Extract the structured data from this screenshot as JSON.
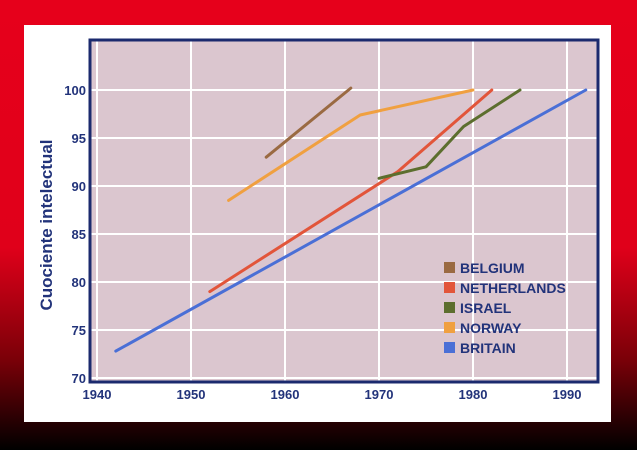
{
  "chart_data": {
    "type": "line",
    "title": "",
    "xlabel": "",
    "ylabel": "Cuociente intelectual",
    "xlim": [
      1940,
      1995
    ],
    "ylim": [
      70,
      105
    ],
    "xticks": [
      1940,
      1950,
      1960,
      1970,
      1980,
      1990
    ],
    "yticks": [
      70,
      75,
      80,
      85,
      90,
      95,
      100
    ],
    "grid": true,
    "legend": "bottom-right",
    "background_color": "#dbc6cf",
    "series": [
      {
        "name": "BELGIUM",
        "color": "#9a6a42",
        "x": [
          1958,
          1967
        ],
        "y": [
          93,
          100.2
        ]
      },
      {
        "name": "NETHERLANDS",
        "color": "#e2553a",
        "x": [
          1952,
          1972,
          1982
        ],
        "y": [
          79,
          91.5,
          100
        ]
      },
      {
        "name": "ISRAEL",
        "color": "#5c6e2e",
        "x": [
          1970,
          1975,
          1979,
          1985
        ],
        "y": [
          90.8,
          92,
          96.2,
          100
        ]
      },
      {
        "name": "NORWAY",
        "color": "#f0a040",
        "x": [
          1954,
          1968,
          1980
        ],
        "y": [
          88.5,
          97.4,
          100
        ]
      },
      {
        "name": "BRITAIN",
        "color": "#4a6fd6",
        "x": [
          1942,
          1992
        ],
        "y": [
          72.8,
          100
        ]
      }
    ]
  }
}
